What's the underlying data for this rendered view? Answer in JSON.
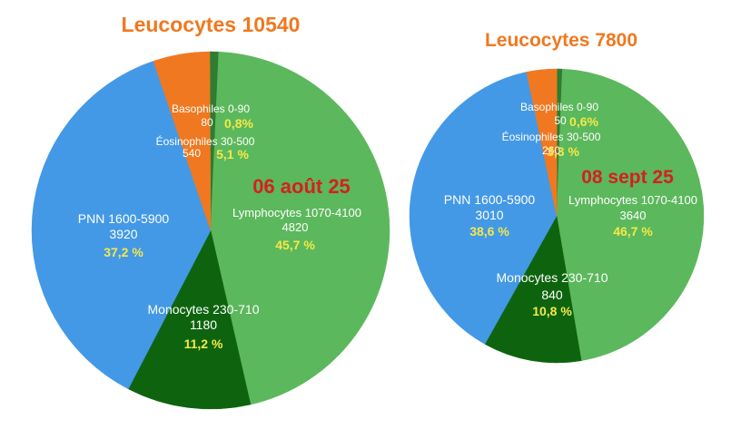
{
  "chart_data": [
    {
      "type": "pie",
      "title": "Leucocytes 10540",
      "date_label": "06 août 25",
      "slices": [
        {
          "name": "Basophiles",
          "range": "0-90",
          "count": "80",
          "pct_label": "0,8%",
          "value": 0.8,
          "color": "#2e7d32"
        },
        {
          "name": "Lymphocytes",
          "range": "1070-4100",
          "count": "4820",
          "pct_label": "45,7 %",
          "value": 45.7,
          "color": "#5cb85c"
        },
        {
          "name": "Monocytes",
          "range": "230-710",
          "count": "1180",
          "pct_label": "11,2 %",
          "value": 11.2,
          "color": "#0e640e"
        },
        {
          "name": "PNN",
          "range": "1600-5900",
          "count": "3920",
          "pct_label": "37,2 %",
          "value": 37.2,
          "color": "#4399e6"
        },
        {
          "name": "Éosinophiles",
          "range": "30-500",
          "count": "540",
          "pct_label": "5,1 %",
          "value": 5.1,
          "color": "#f07820"
        }
      ]
    },
    {
      "type": "pie",
      "title": "Leucocytes 7800",
      "date_label": "08 sept 25",
      "slices": [
        {
          "name": "Basophiles",
          "range": "0-90",
          "count": "50",
          "pct_label": "0,6%",
          "value": 0.6,
          "color": "#2e7d32"
        },
        {
          "name": "Lymphocytes",
          "range": "1070-4100",
          "count": "3640",
          "pct_label": "46,7 %",
          "value": 46.7,
          "color": "#5cb85c"
        },
        {
          "name": "Monocytes",
          "range": "230-710",
          "count": "840",
          "pct_label": "10,8 %",
          "value": 10.8,
          "color": "#0e640e"
        },
        {
          "name": "PNN",
          "range": "1600-5900",
          "count": "3010",
          "pct_label": "38,6 %",
          "value": 38.6,
          "color": "#4399e6"
        },
        {
          "name": "Éosinophiles",
          "range": "30-500",
          "count": "260",
          "pct_label": "3,3 %",
          "value": 3.3,
          "color": "#f07820"
        }
      ]
    }
  ],
  "colors": {
    "title": "#f07820",
    "date": "#d42020",
    "percent": "#f5e84a",
    "label": "#ffffff"
  }
}
